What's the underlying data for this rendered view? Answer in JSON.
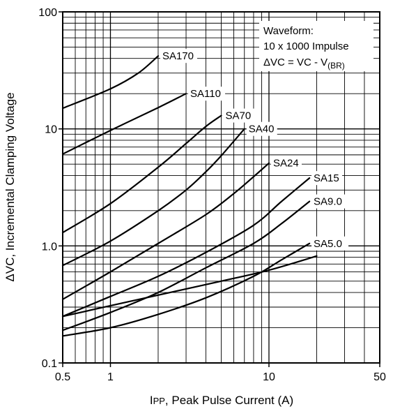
{
  "chart_data": {
    "type": "line",
    "xscale": "log",
    "yscale": "log",
    "xlim": [
      0.5,
      50
    ],
    "ylim": [
      0.1,
      100
    ],
    "grid": true,
    "xlabel_prefix": "I",
    "xlabel_sub": "PP",
    "xlabel_rest": ", Peak Pulse Current (A)",
    "ylabel": "ΔVC, Incremental Clamping Voltage",
    "x_ticks": [
      {
        "value": 0.5,
        "label": "0.5"
      },
      {
        "value": 1,
        "label": "1"
      },
      {
        "value": 10,
        "label": "10"
      },
      {
        "value": 50,
        "label": "50"
      }
    ],
    "y_ticks": [
      {
        "value": 0.1,
        "label": "0.1"
      },
      {
        "value": 1,
        "label": "1.0"
      },
      {
        "value": 10,
        "label": "10"
      },
      {
        "value": 100,
        "label": "100"
      }
    ],
    "annotation": {
      "line1": "Waveform:",
      "line2": "10 x 1000 Impulse",
      "line3_main": "ΔVC = VC - V",
      "line3_sub": "(BR)"
    },
    "series": [
      {
        "name": "SA170",
        "x": [
          0.5,
          1.0,
          1.5,
          2.0
        ],
        "y": [
          15,
          22,
          30,
          42
        ]
      },
      {
        "name": "SA110",
        "x": [
          0.5,
          1.0,
          2.0,
          3.0
        ],
        "y": [
          6.1,
          9.7,
          15.2,
          20
        ]
      },
      {
        "name": "SA70",
        "x": [
          0.5,
          1.0,
          2.0,
          3.0,
          4.0,
          5.0
        ],
        "y": [
          1.3,
          2.3,
          4.7,
          7.5,
          10.5,
          13
        ]
      },
      {
        "name": "SA40",
        "x": [
          0.5,
          1.0,
          2.0,
          3.0,
          4.0,
          5.0,
          7.0
        ],
        "y": [
          0.68,
          1.1,
          2.0,
          3.0,
          4.3,
          5.9,
          10
        ]
      },
      {
        "name": "SA24",
        "x": [
          0.5,
          1.0,
          2.0,
          4.0,
          6.0,
          8.0,
          10.0
        ],
        "y": [
          0.35,
          0.6,
          1.05,
          1.85,
          2.8,
          3.9,
          5.1
        ]
      },
      {
        "name": "SA15",
        "x": [
          0.5,
          1.0,
          2.0,
          4.0,
          8.0,
          12.0,
          18.0
        ],
        "y": [
          0.25,
          0.37,
          0.55,
          0.88,
          1.5,
          2.4,
          3.8
        ]
      },
      {
        "name": "SA9.0",
        "x": [
          0.5,
          1.0,
          2.0,
          4.0,
          8.0,
          12.0,
          18.0
        ],
        "y": [
          0.19,
          0.27,
          0.4,
          0.65,
          1.05,
          1.55,
          2.4
        ]
      },
      {
        "name": "SA5.0",
        "x": [
          0.5,
          1.0,
          2.0,
          4.0,
          8.0,
          12.0,
          18.0
        ],
        "y": [
          0.17,
          0.2,
          0.26,
          0.36,
          0.55,
          0.76,
          1.05
        ]
      }
    ],
    "crossing_line": {
      "x": [
        0.5,
        2.0,
        5.0,
        10.0,
        20.0
      ],
      "y": [
        0.25,
        0.38,
        0.5,
        0.62,
        0.82
      ]
    },
    "label_anchor_series": [
      "SA170",
      "SA110",
      "SA70",
      "SA40",
      "SA24",
      "SA15",
      "SA9.0",
      "SA5.0"
    ]
  }
}
